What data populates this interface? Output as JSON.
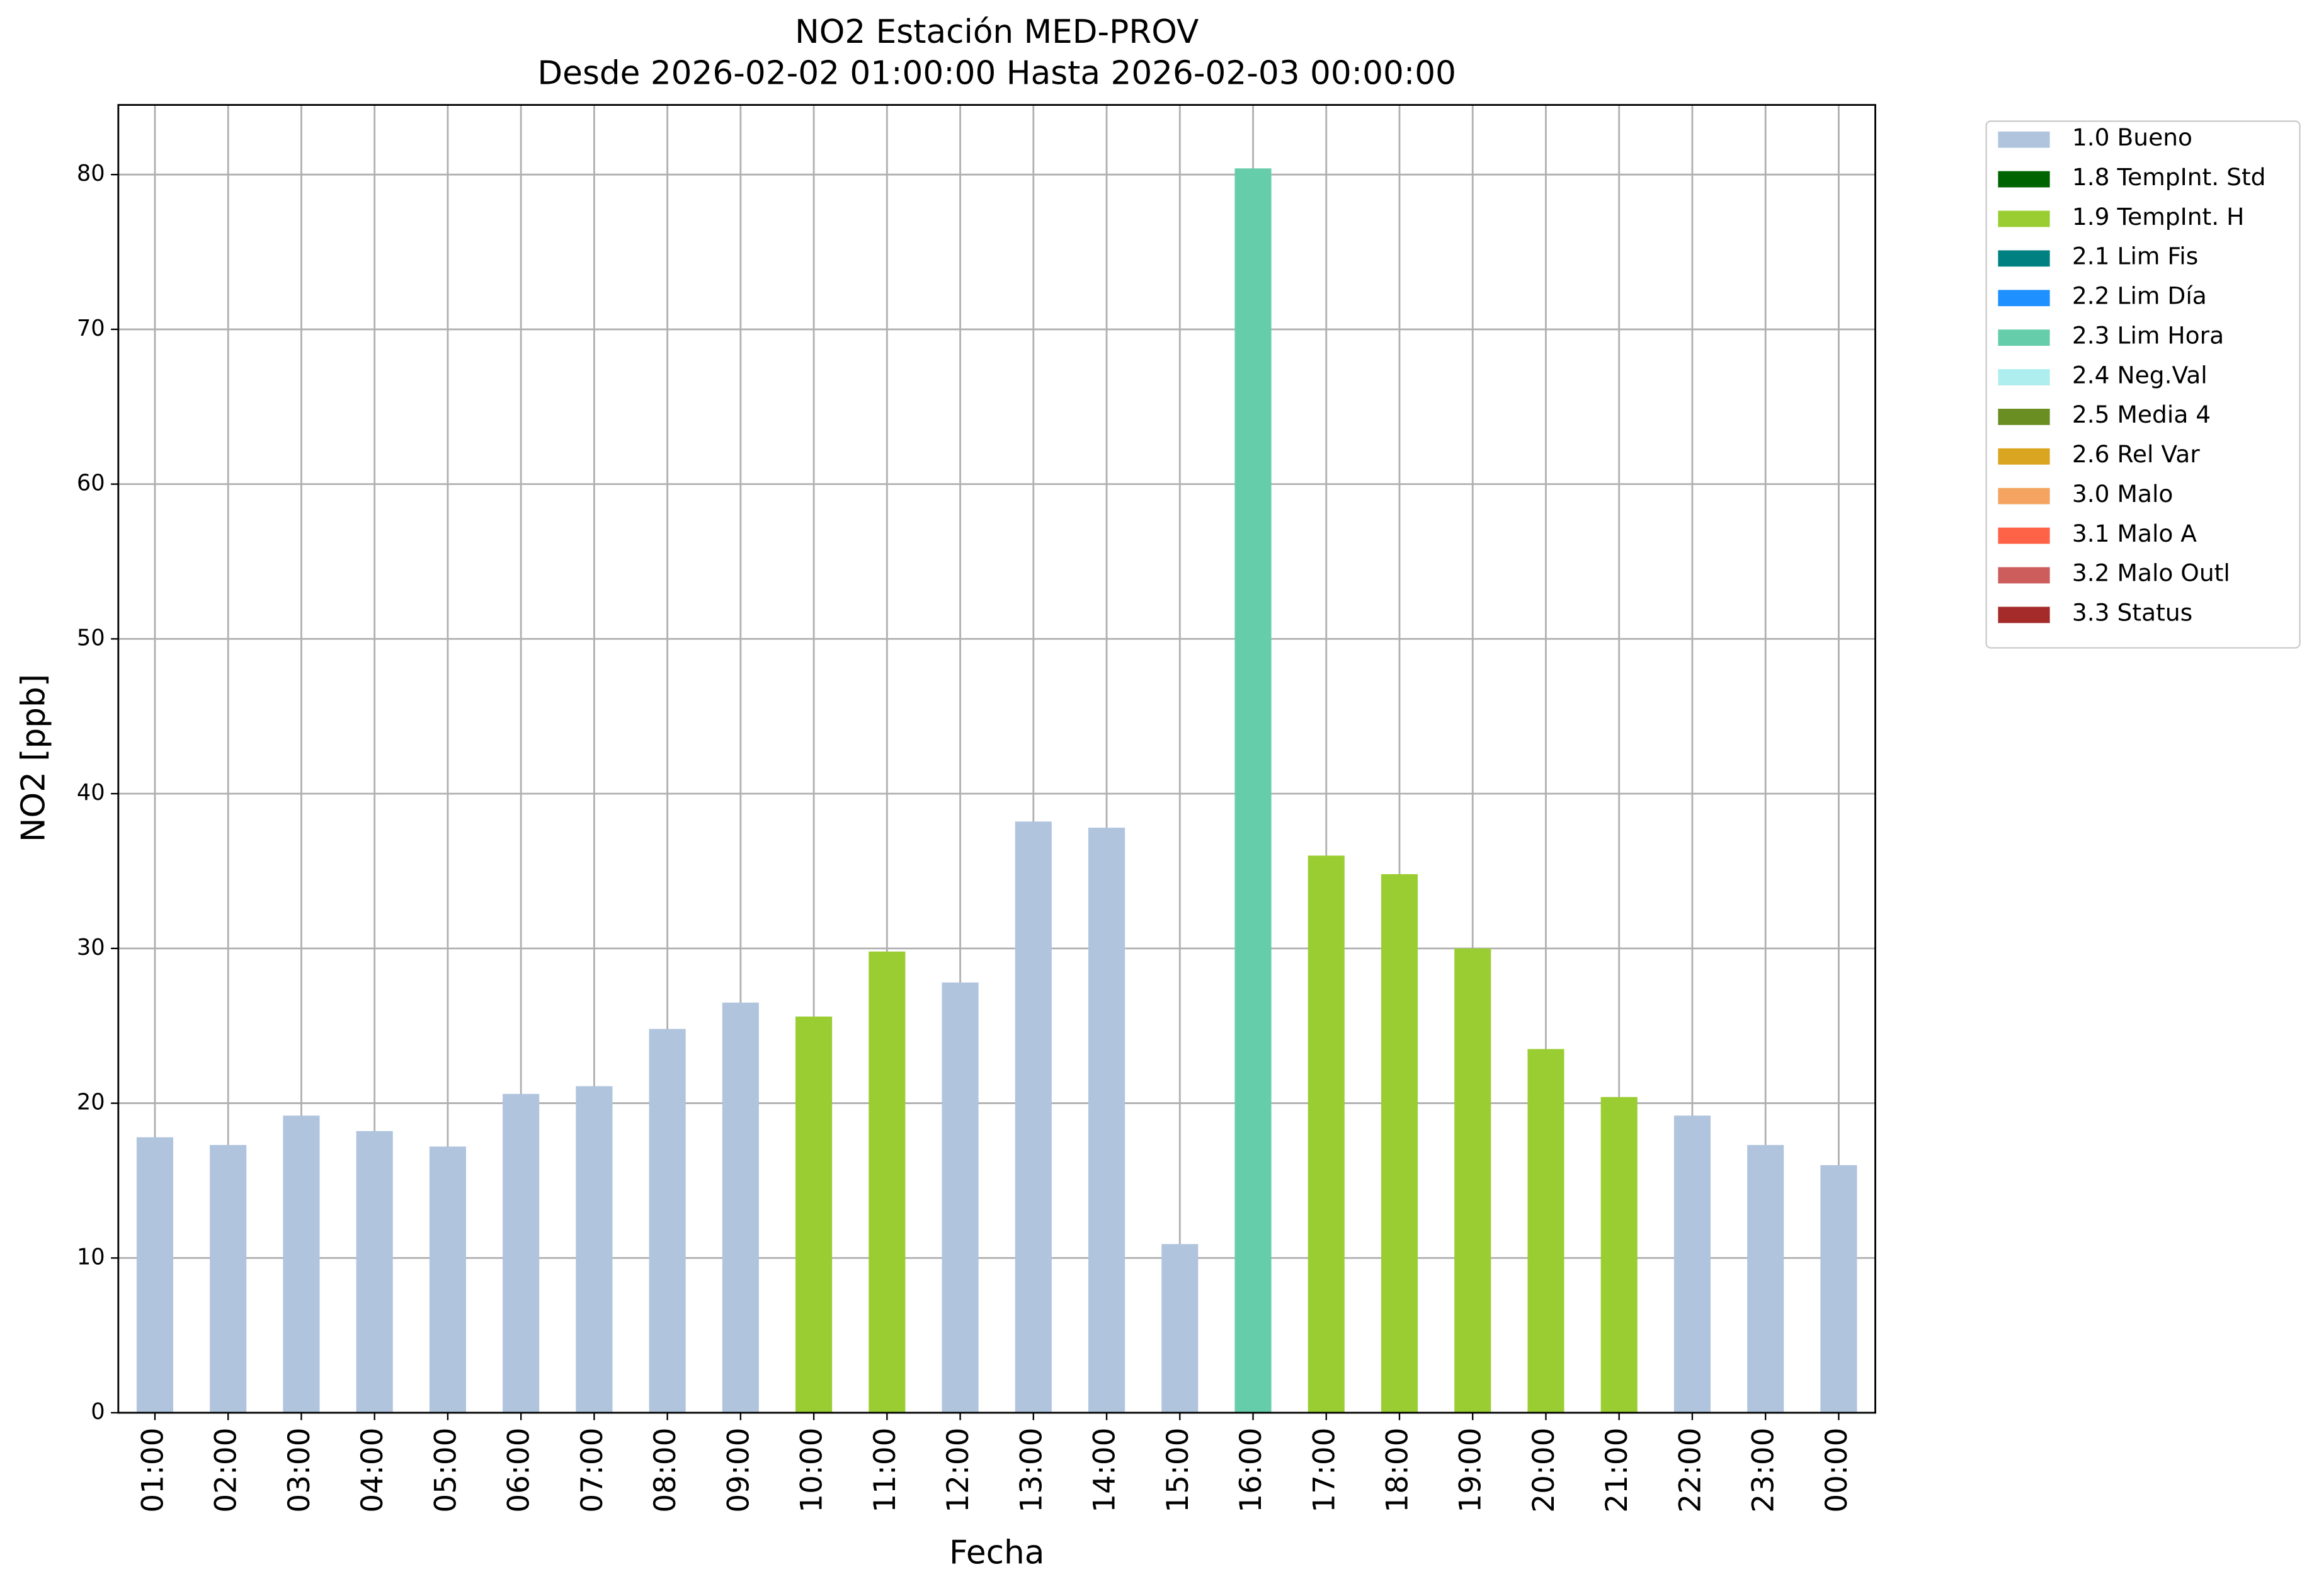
{
  "chart_data": {
    "type": "stacked-bar",
    "title": "NO2 Estación MED-PROV",
    "subtitle": "Desde 2026-02-02 01:00:00 Hasta 2026-02-03 00:00:00",
    "xlabel": "Fecha",
    "ylabel": "NO2 [ppb]",
    "categories": [
      "01:00",
      "02:00",
      "03:00",
      "04:00",
      "05:00",
      "06:00",
      "07:00",
      "08:00",
      "09:00",
      "10:00",
      "11:00",
      "12:00",
      "13:00",
      "14:00",
      "15:00",
      "16:00",
      "17:00",
      "18:00",
      "19:00",
      "20:00",
      "21:00",
      "22:00",
      "23:00",
      "00:00"
    ],
    "series": [
      {
        "name": "1.0 Bueno",
        "color": "#b0c4de",
        "values": [
          17.8,
          17.3,
          19.2,
          18.2,
          17.2,
          20.6,
          21.1,
          24.8,
          26.5,
          null,
          null,
          27.8,
          38.2,
          37.8,
          10.9,
          null,
          null,
          null,
          null,
          null,
          null,
          19.2,
          17.3,
          16.0
        ]
      },
      {
        "name": "1.8 TempInt. Std",
        "color": "#006400",
        "values": [
          null,
          null,
          null,
          null,
          null,
          null,
          null,
          null,
          null,
          null,
          null,
          null,
          null,
          null,
          null,
          null,
          null,
          null,
          null,
          null,
          null,
          null,
          null,
          null
        ]
      },
      {
        "name": "1.9 TempInt. H",
        "color": "#9acd32",
        "values": [
          null,
          null,
          null,
          null,
          null,
          null,
          null,
          null,
          null,
          25.6,
          29.8,
          null,
          null,
          null,
          null,
          null,
          36.0,
          34.8,
          30.0,
          23.5,
          20.4,
          null,
          null,
          null
        ]
      },
      {
        "name": "2.1 Lim Fis",
        "color": "#008080",
        "values": [
          null,
          null,
          null,
          null,
          null,
          null,
          null,
          null,
          null,
          null,
          null,
          null,
          null,
          null,
          null,
          null,
          null,
          null,
          null,
          null,
          null,
          null,
          null,
          null
        ]
      },
      {
        "name": "2.2 Lim Día",
        "color": "#1e90ff",
        "values": [
          null,
          null,
          null,
          null,
          null,
          null,
          null,
          null,
          null,
          null,
          null,
          null,
          null,
          null,
          null,
          null,
          null,
          null,
          null,
          null,
          null,
          null,
          null,
          null
        ]
      },
      {
        "name": "2.3 Lim Hora",
        "color": "#66cdaa",
        "values": [
          null,
          null,
          null,
          null,
          null,
          null,
          null,
          null,
          null,
          null,
          null,
          null,
          null,
          null,
          null,
          80.4,
          null,
          null,
          null,
          null,
          null,
          null,
          null,
          null
        ]
      },
      {
        "name": "2.4 Neg.Val",
        "color": "#afeeee",
        "values": [
          null,
          null,
          null,
          null,
          null,
          null,
          null,
          null,
          null,
          null,
          null,
          null,
          null,
          null,
          null,
          null,
          null,
          null,
          null,
          null,
          null,
          null,
          null,
          null
        ]
      },
      {
        "name": "2.5 Media 4",
        "color": "#6b8e23",
        "values": [
          null,
          null,
          null,
          null,
          null,
          null,
          null,
          null,
          null,
          null,
          null,
          null,
          null,
          null,
          null,
          null,
          null,
          null,
          null,
          null,
          null,
          null,
          null,
          null
        ]
      },
      {
        "name": "2.6 Rel Var",
        "color": "#daa520",
        "values": [
          null,
          null,
          null,
          null,
          null,
          null,
          null,
          null,
          null,
          null,
          null,
          null,
          null,
          null,
          null,
          null,
          null,
          null,
          null,
          null,
          null,
          null,
          null,
          null
        ]
      },
      {
        "name": "3.0 Malo",
        "color": "#f4a460",
        "values": [
          null,
          null,
          null,
          null,
          null,
          null,
          null,
          null,
          null,
          null,
          null,
          null,
          null,
          null,
          null,
          null,
          null,
          null,
          null,
          null,
          null,
          null,
          null,
          null
        ]
      },
      {
        "name": "3.1 Malo A",
        "color": "#ff6347",
        "values": [
          null,
          null,
          null,
          null,
          null,
          null,
          null,
          null,
          null,
          null,
          null,
          null,
          null,
          null,
          null,
          null,
          null,
          null,
          null,
          null,
          null,
          null,
          null,
          null
        ]
      },
      {
        "name": "3.2 Malo Outl",
        "color": "#cd5c5c",
        "values": [
          null,
          null,
          null,
          null,
          null,
          null,
          null,
          null,
          null,
          null,
          null,
          null,
          null,
          null,
          null,
          null,
          null,
          null,
          null,
          null,
          null,
          null,
          null,
          null
        ]
      },
      {
        "name": "3.3 Status",
        "color": "#a52a2a",
        "values": [
          null,
          null,
          null,
          null,
          null,
          null,
          null,
          null,
          null,
          null,
          null,
          null,
          null,
          null,
          null,
          null,
          null,
          null,
          null,
          null,
          null,
          null,
          null,
          null
        ]
      }
    ],
    "ylim": [
      0,
      84.5
    ],
    "yticks": [
      0,
      10,
      20,
      30,
      40,
      50,
      60,
      70,
      80
    ],
    "grid": true,
    "legend": "outside-right"
  }
}
